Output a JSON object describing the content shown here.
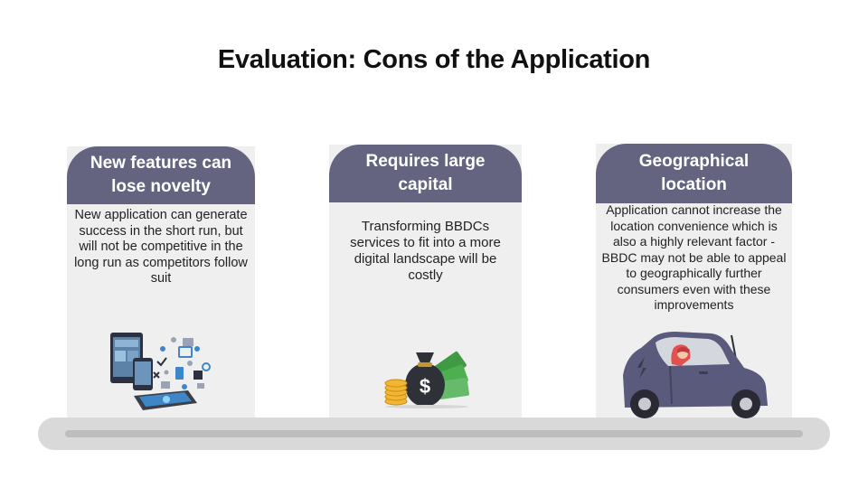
{
  "slide": {
    "title": "Evaluation: Cons of the Application"
  },
  "cards": [
    {
      "heading": "New features can lose novelty",
      "body": "New application can generate success in the short run, but will not be competitive in the long run as competitors follow suit",
      "illustration": "devices-icon"
    },
    {
      "heading": "Requires large capital",
      "body": "Transforming BBDCs services to fit into a more digital landscape will be costly",
      "illustration": "money-bag-icon"
    },
    {
      "heading": "Geographical location",
      "body": "Application cannot increase the location convenience which is also a highly relevant factor - BBDC may not be able to appeal to geographically further consumers even with these improvements",
      "illustration": "car-icon"
    }
  ],
  "colors": {
    "header": "#646481",
    "card": "#efefef",
    "platform": "#d9d9d9"
  }
}
